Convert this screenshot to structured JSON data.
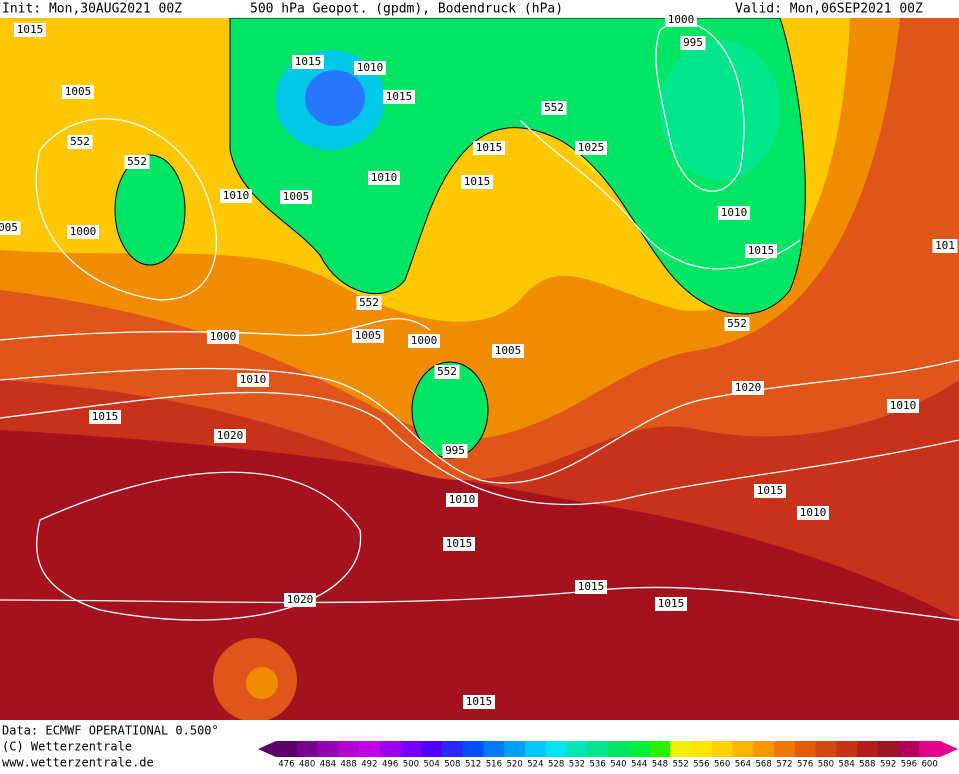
{
  "header": {
    "init": "Init: Mon,30AUG2021 00Z",
    "title": "500 hPa Geopot. (gpdm), Bodendruck (hPa)",
    "valid": "Valid: Mon,06SEP2021 00Z"
  },
  "isobar_labels": [
    "1015",
    "1005",
    "552",
    "552",
    "1010",
    "1000",
    "005",
    "1015",
    "1010",
    "1015",
    "1010",
    "1005",
    "552",
    "1015",
    "1015",
    "552",
    "1025",
    "1000",
    "995",
    "1010",
    "1015",
    "552",
    "101",
    "1000",
    "1005",
    "1000",
    "1005",
    "552",
    "1010",
    "1015",
    "1020",
    "995",
    "1020",
    "1010",
    "1015",
    "1010",
    "1010",
    "1015",
    "1015",
    "1015",
    "1020",
    "1015"
  ],
  "footer": {
    "data": "Data: ECMWF OPERATIONAL 0.500°",
    "copyright": "(C) Wetterzentrale",
    "url": "www.wetterzentrale.de"
  },
  "legend": {
    "values": [
      476,
      480,
      484,
      488,
      492,
      496,
      500,
      504,
      508,
      512,
      516,
      520,
      524,
      528,
      532,
      536,
      540,
      544,
      548,
      552,
      556,
      560,
      564,
      568,
      572,
      576,
      580,
      584,
      588,
      592,
      596,
      600
    ],
    "colors": [
      "#5a0068",
      "#780090",
      "#9600b4",
      "#b400d2",
      "#c800e6",
      "#a000f0",
      "#7800ff",
      "#5000ff",
      "#2828ff",
      "#0050ff",
      "#0078ff",
      "#00a0ff",
      "#00c8ff",
      "#00e6f0",
      "#00e6b4",
      "#00e68c",
      "#00e664",
      "#00f03c",
      "#28f000",
      "#f0f000",
      "#ffe600",
      "#ffd200",
      "#ffb400",
      "#ff9600",
      "#f07800",
      "#e65a00",
      "#d24614",
      "#c83214",
      "#b41e1e",
      "#a01428",
      "#b4005a",
      "#e6008c"
    ]
  }
}
